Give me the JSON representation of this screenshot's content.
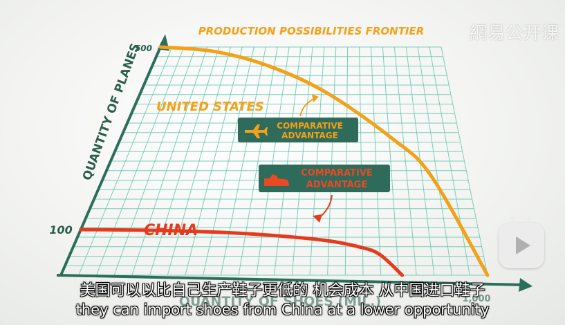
{
  "watermark": "網易公开课",
  "subtitles": {
    "chinese": "美国可以以比自己生产鞋子更低的 机会成本 从中国进口鞋子",
    "english": "they can import shoes from China at a lower opportunity"
  },
  "player": {
    "play_icon": "bilibili-play-icon"
  },
  "colors": {
    "grid": "#63c6b2",
    "axis": "#2b6e5b",
    "us_curve": "#f3a117",
    "china_curve": "#e63a1c",
    "badge": "#2f6b5a",
    "badge_text_us": "#f3a117",
    "badge_text_china": "#e84a24",
    "axis_label": "#2b5e4e"
  },
  "chart_data": {
    "type": "line",
    "title": "PRODUCTION POSSIBILITIES FRONTIER",
    "ylabel": "QUANTITY OF PLANES",
    "xlabel": "QUANTITY OF SHOES (MIL.)",
    "y_ticks": [
      "500",
      "100"
    ],
    "x_ticks": [
      "1,000"
    ],
    "xlim": [
      0,
      1000
    ],
    "ylim": [
      0,
      500
    ],
    "grid": true,
    "series": [
      {
        "name": "UNITED STATES",
        "color": "#f3a117",
        "x": [
          0,
          200,
          400,
          600,
          800,
          900,
          1000
        ],
        "y": [
          500,
          490,
          458,
          400,
          300,
          218,
          0
        ]
      },
      {
        "name": "CHINA",
        "color": "#e63a1c",
        "x": [
          0,
          200,
          400,
          600,
          700,
          750,
          800
        ],
        "y": [
          100,
          98,
          92,
          78,
          62,
          45,
          0
        ]
      }
    ],
    "annotations": [
      {
        "text_line1": "COMPARATIVE",
        "text_line2": "ADVANTAGE",
        "icon": "airplane-icon",
        "series": "UNITED STATES"
      },
      {
        "text_line1": "COMPARATIVE",
        "text_line2": "ADVANTAGE",
        "icon": "shoe-icon",
        "series": "CHINA"
      }
    ]
  }
}
